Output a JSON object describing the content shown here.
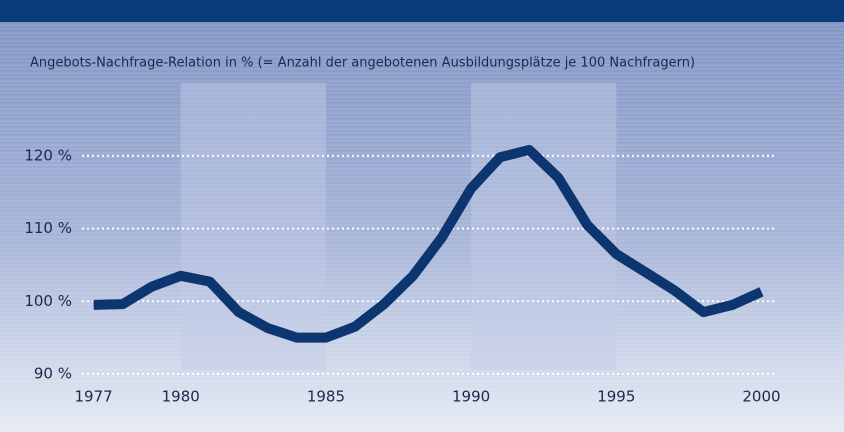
{
  "chart_data": {
    "type": "line",
    "title": "Angebots-Nachfrage-Relation in % (= Anzahl der angebotenen Ausbildungsplätze je 100 Nachfragern)",
    "x": [
      1977,
      1978,
      1979,
      1980,
      1981,
      1982,
      1983,
      1984,
      1985,
      1986,
      1987,
      1988,
      1989,
      1990,
      1991,
      1992,
      1993,
      1994,
      1995,
      1996,
      1997,
      1998,
      1999,
      2000
    ],
    "series": [
      {
        "name": "Angebots-Nachfrage-Relation",
        "color": "#0d3570",
        "values": [
          99.5,
          99.6,
          102,
          103.5,
          102.7,
          98.5,
          96.3,
          95,
          95,
          96.5,
          99.6,
          103.5,
          108.8,
          115.5,
          119.8,
          120.8,
          117,
          110.5,
          106.5,
          104,
          101.5,
          98.5,
          99.5,
          101.3
        ]
      }
    ],
    "xlim": [
      1976.6,
      2000.5
    ],
    "xticks": [
      1977,
      1980,
      1985,
      1990,
      1995,
      2000
    ],
    "ylim": [
      90,
      130
    ],
    "yticks": [
      {
        "value": 90,
        "label": "90 %"
      },
      {
        "value": 100,
        "label": "100 %"
      },
      {
        "value": 110,
        "label": "110 %"
      },
      {
        "value": 120,
        "label": "120 %"
      }
    ],
    "shaded_ranges": [
      [
        1980,
        1985
      ],
      [
        1990,
        1995
      ]
    ],
    "grid": true
  }
}
